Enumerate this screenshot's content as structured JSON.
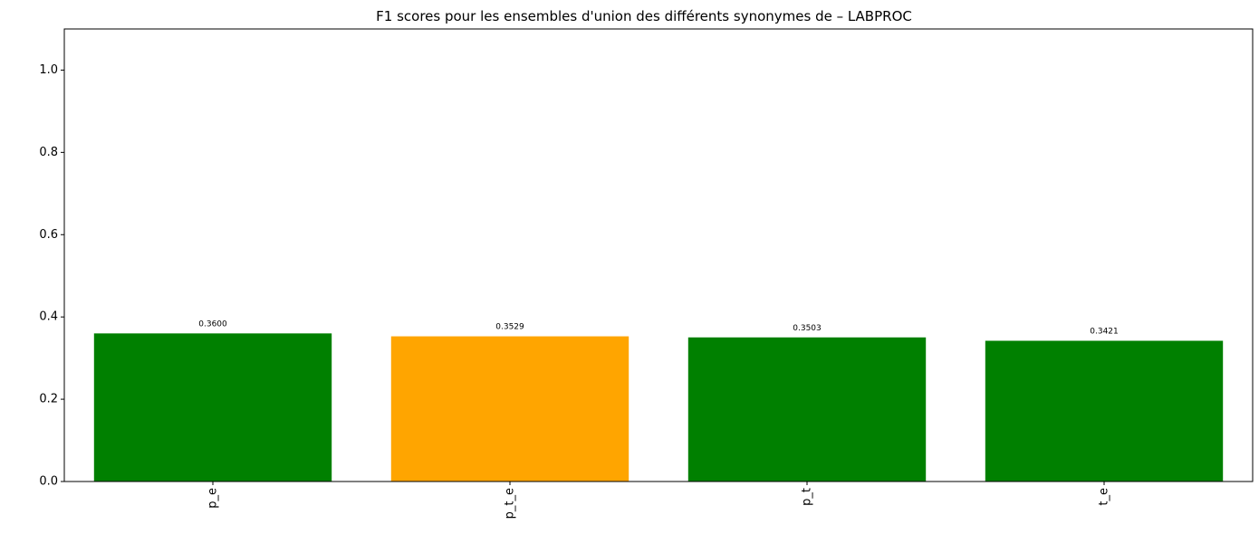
{
  "chart_data": {
    "type": "bar",
    "title": "F1 scores pour les ensembles d'union des différents synonymes de – LABPROC",
    "xlabel": "",
    "ylabel": "",
    "ylim": [
      0,
      1.1
    ],
    "yticks": [
      0.0,
      0.2,
      0.4,
      0.6,
      0.8,
      1.0
    ],
    "ytick_labels": [
      "0.0",
      "0.2",
      "0.4",
      "0.6",
      "0.8",
      "1.0"
    ],
    "categories": [
      "p_e",
      "p_t_e",
      "p_t",
      "t_e"
    ],
    "values": [
      0.36,
      0.3529,
      0.3503,
      0.3421
    ],
    "data_labels": [
      "0.3600",
      "0.3529",
      "0.3503",
      "0.3421"
    ],
    "bar_colors": [
      "#008000",
      "#ffa500",
      "#008000",
      "#008000"
    ],
    "xtick_rotation": "vertical",
    "grid": false,
    "legend": "none"
  }
}
